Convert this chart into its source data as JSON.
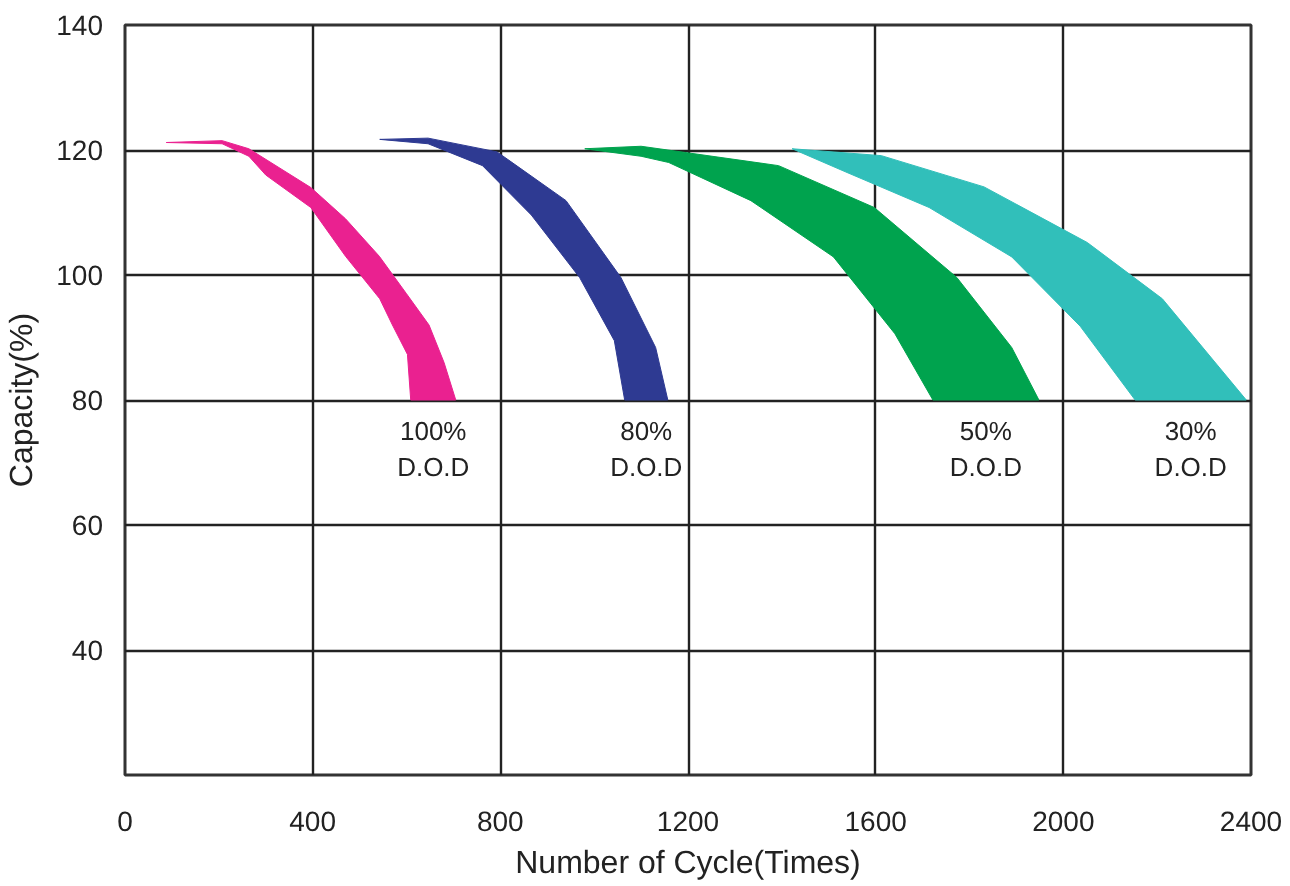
{
  "chart_data": {
    "type": "area",
    "xlabel": "Number of Cycle(Times)",
    "ylabel": "Capacity(%)",
    "xlim": [
      0,
      2400
    ],
    "xticks": [
      0,
      400,
      800,
      1200,
      1600,
      2000,
      2400
    ],
    "ylim": [
      20,
      140
    ],
    "yticks": [
      40,
      60,
      80,
      100,
      120,
      140
    ],
    "grid": true,
    "series": [
      {
        "name": "100%\nD.O.D",
        "color": "#ea2190",
        "x": [
          88,
          207,
          264,
          396,
          470,
          542,
          600,
          648,
          680,
          705,
          609,
          602,
          570,
          543,
          470,
          396,
          300,
          264,
          207,
          88
        ],
        "values": [
          121.2,
          121.5,
          120.2,
          114,
          109,
          103,
          97,
          92,
          86,
          80,
          80,
          87.3,
          92,
          96.2,
          103,
          110.8,
          116,
          119,
          121,
          121.2
        ]
      },
      {
        "name": "80%\nD.O.D",
        "color": "#2e3a92",
        "x": [
          543,
          646,
          793,
          940,
          1057,
          1131,
          1157,
          1065,
          1043,
          969,
          866,
          762,
          646,
          543
        ],
        "values": [
          121.7,
          121.9,
          119.7,
          111.9,
          99.6,
          88.4,
          80,
          80,
          89.5,
          99.6,
          109.6,
          117.5,
          121,
          121.7
        ]
      },
      {
        "name": "50%\nD.O.D",
        "color": "#00a34e",
        "x": [
          980,
          1100,
          1393,
          1597,
          1773,
          1890,
          1948,
          1722,
          1641,
          1510,
          1334,
          1159,
          1100,
          980
        ],
        "values": [
          120.2,
          120.6,
          117.5,
          110.8,
          99.6,
          88.4,
          80,
          80,
          90.6,
          102.9,
          111.9,
          118,
          119,
          120.2
        ]
      },
      {
        "name": "30%\nD.O.D",
        "color": "#31bfba",
        "x": [
          1422,
          1612,
          1831,
          2051,
          2211,
          2390,
          2153,
          2036,
          1890,
          1714,
          1539,
          1422
        ],
        "values": [
          120.2,
          119.1,
          114.1,
          105.2,
          96.2,
          80,
          80,
          91.8,
          102.9,
          110.8,
          116.4,
          120.2
        ]
      }
    ]
  }
}
